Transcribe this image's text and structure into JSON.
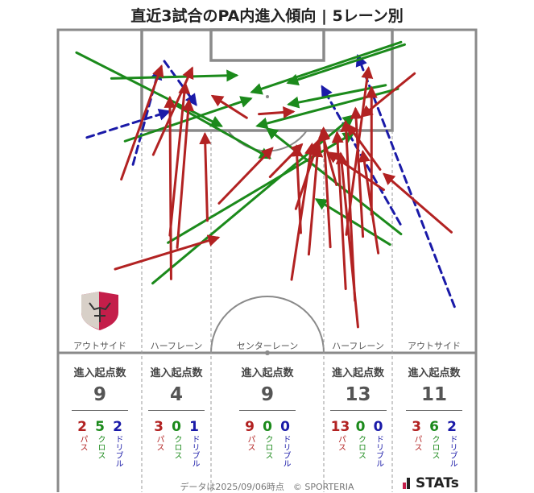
{
  "title": "直近3試合のPA内進入傾向 | 5レーン別",
  "lanes": [
    {
      "label": "アウトサイド",
      "head": "進入起点数",
      "total": "9",
      "pass": "2",
      "cross": "5",
      "dribble": "2"
    },
    {
      "label": "ハーフレーン",
      "head": "進入起点数",
      "total": "4",
      "pass": "3",
      "cross": "0",
      "dribble": "1"
    },
    {
      "label": "センターレーン",
      "head": "進入起点数",
      "total": "9",
      "pass": "9",
      "cross": "0",
      "dribble": "0"
    },
    {
      "label": "ハーフレーン",
      "head": "進入起点数",
      "total": "13",
      "pass": "13",
      "cross": "0",
      "dribble": "0"
    },
    {
      "label": "アウトサイド",
      "head": "進入起点数",
      "total": "11",
      "pass": "3",
      "cross": "6",
      "dribble": "2"
    }
  ],
  "type_labels": {
    "pass": "パス",
    "cross": "クロス",
    "dribble": "ドリブル"
  },
  "colors": {
    "pass": "#b22222",
    "cross": "#1b8a1b",
    "dribble": "#1a1aa8",
    "pitch_line": "#8a8a8a"
  },
  "footer": "データは2025/09/06時点　© SPORTERIA",
  "brand": "STATs",
  "chart_data": {
    "type": "scatter",
    "description_units": "pitch coordinates in meters: x across width 0-68 (left to right), y distance from goal line 0-52.5",
    "lanes": [
      "アウトサイド",
      "ハーフレーン",
      "センターレーン",
      "ハーフレーン",
      "アウトサイド"
    ],
    "counts": {
      "pass": [
        2,
        3,
        9,
        13,
        3
      ],
      "cross": [
        5,
        0,
        0,
        0,
        6
      ],
      "dribble": [
        2,
        1,
        0,
        0,
        2
      ]
    },
    "arrows": [
      {
        "kind": "cross",
        "from": [
          3.0,
          3.7
        ],
        "to": [
          26.5,
          15.6
        ]
      },
      {
        "kind": "cross",
        "from": [
          8.7,
          7.9
        ],
        "to": [
          29.0,
          7.4
        ]
      },
      {
        "kind": "cross",
        "from": [
          10.9,
          18.1
        ],
        "to": [
          31.3,
          11.2
        ]
      },
      {
        "kind": "cross",
        "from": [
          19.4,
          12.4
        ],
        "to": [
          34.4,
          20.8
        ]
      },
      {
        "kind": "cross",
        "from": [
          15.4,
          41.2
        ],
        "to": [
          48.0,
          14.0
        ]
      },
      {
        "kind": "cross",
        "from": [
          17.9,
          34.6
        ],
        "to": [
          48.0,
          16.8
        ]
      },
      {
        "kind": "cross",
        "from": [
          56.4,
          2.4
        ],
        "to": [
          37.5,
          8.6
        ]
      },
      {
        "kind": "cross",
        "from": [
          53.3,
          9.0
        ],
        "to": [
          37.6,
          12.1
        ]
      },
      {
        "kind": "cross",
        "from": [
          55.3,
          9.6
        ],
        "to": [
          32.5,
          15.6
        ]
      },
      {
        "kind": "cross",
        "from": [
          55.8,
          2.0
        ],
        "to": [
          31.6,
          10.1
        ]
      },
      {
        "kind": "cross",
        "from": [
          55.8,
          33.2
        ],
        "to": [
          34.1,
          16.1
        ]
      },
      {
        "kind": "cross",
        "from": [
          54.0,
          34.9
        ],
        "to": [
          42.1,
          27.6
        ]
      },
      {
        "kind": "dribble",
        "from": [
          4.7,
          17.5
        ],
        "to": [
          18.0,
          13.3
        ]
      },
      {
        "kind": "dribble",
        "from": [
          12.2,
          21.9
        ],
        "to": [
          16.4,
          6.5
        ]
      },
      {
        "kind": "dribble",
        "from": [
          17.3,
          5.1
        ],
        "to": [
          22.4,
          12.1
        ]
      },
      {
        "kind": "dribble",
        "from": [
          64.5,
          45.0
        ],
        "to": [
          48.8,
          4.3
        ]
      },
      {
        "kind": "dribble",
        "from": [
          55.7,
          31.6
        ],
        "to": [
          43.0,
          9.3
        ]
      },
      {
        "kind": "pass",
        "from": [
          9.3,
          38.9
        ],
        "to": [
          26.0,
          33.8
        ]
      },
      {
        "kind": "pass",
        "from": [
          10.3,
          24.3
        ],
        "to": [
          16.8,
          6.0
        ]
      },
      {
        "kind": "pass",
        "from": [
          15.5,
          20.3
        ],
        "to": [
          21.8,
          6.3
        ]
      },
      {
        "kind": "pass",
        "from": [
          18.2,
          33.4
        ],
        "to": [
          20.7,
          8.8
        ]
      },
      {
        "kind": "pass",
        "from": [
          18.4,
          40.5
        ],
        "to": [
          18.2,
          11.1
        ]
      },
      {
        "kind": "pass",
        "from": [
          19.4,
          35.4
        ],
        "to": [
          21.3,
          11.6
        ]
      },
      {
        "kind": "pass",
        "from": [
          24.3,
          31.0
        ],
        "to": [
          23.9,
          17.0
        ]
      },
      {
        "kind": "pass",
        "from": [
          26.2,
          28.2
        ],
        "to": [
          34.8,
          19.3
        ]
      },
      {
        "kind": "pass",
        "from": [
          30.7,
          14.3
        ],
        "to": [
          25.2,
          10.8
        ]
      },
      {
        "kind": "pass",
        "from": [
          32.7,
          13.7
        ],
        "to": [
          38.2,
          13.3
        ]
      },
      {
        "kind": "pass",
        "from": [
          34.5,
          23.9
        ],
        "to": [
          39.6,
          18.7
        ]
      },
      {
        "kind": "pass",
        "from": [
          38.7,
          29.1
        ],
        "to": [
          42.4,
          18.0
        ]
      },
      {
        "kind": "pass",
        "from": [
          38.0,
          40.6
        ],
        "to": [
          41.3,
          18.7
        ]
      },
      {
        "kind": "pass",
        "from": [
          40.8,
          36.5
        ],
        "to": [
          42.3,
          19.1
        ]
      },
      {
        "kind": "pass",
        "from": [
          44.3,
          35.3
        ],
        "to": [
          43.2,
          16.1
        ]
      },
      {
        "kind": "pass",
        "from": [
          46.8,
          42.1
        ],
        "to": [
          45.4,
          16.8
        ]
      },
      {
        "kind": "pass",
        "from": [
          46.9,
          33.3
        ],
        "to": [
          50.5,
          6.3
        ]
      },
      {
        "kind": "pass",
        "from": [
          48.8,
          48.3
        ],
        "to": [
          46.0,
          20.2
        ]
      },
      {
        "kind": "pass",
        "from": [
          48.3,
          44.0
        ],
        "to": [
          46.8,
          15.0
        ]
      },
      {
        "kind": "pass",
        "from": [
          52.1,
          36.3
        ],
        "to": [
          49.6,
          19.9
        ]
      },
      {
        "kind": "pass",
        "from": [
          49.6,
          33.6
        ],
        "to": [
          48.4,
          12.9
        ]
      },
      {
        "kind": "pass",
        "from": [
          51.0,
          30.0
        ],
        "to": [
          51.0,
          9.5
        ]
      },
      {
        "kind": "pass",
        "from": [
          52.4,
          22.7
        ],
        "to": [
          47.2,
          15.5
        ]
      },
      {
        "kind": "pass",
        "from": [
          45.3,
          25.2
        ],
        "to": [
          42.9,
          16.5
        ]
      },
      {
        "kind": "pass",
        "from": [
          64.0,
          32.9
        ],
        "to": [
          53.1,
          23.5
        ]
      },
      {
        "kind": "pass",
        "from": [
          58.0,
          7.1
        ],
        "to": [
          49.5,
          14.0
        ]
      },
      {
        "kind": "pass",
        "from": [
          53.0,
          26.0
        ],
        "to": [
          44.0,
          20.0
        ]
      },
      {
        "kind": "pass",
        "from": [
          39.5,
          33.0
        ],
        "to": [
          38.8,
          19.0
        ]
      }
    ]
  }
}
